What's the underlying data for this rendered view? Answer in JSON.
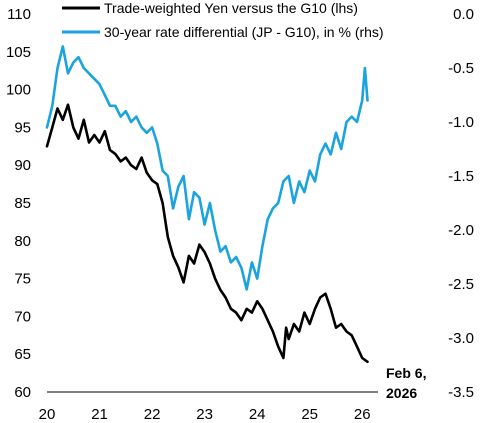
{
  "chart_data": {
    "type": "line",
    "title": "",
    "xlabel": "",
    "ylabel_left": "",
    "ylabel_right": "",
    "x_range": [
      2020,
      2026.3
    ],
    "x_ticks": [
      "20",
      "21",
      "22",
      "23",
      "24",
      "25",
      "26"
    ],
    "y_left_range": [
      60,
      110
    ],
    "y_left_ticks": [
      "60",
      "65",
      "70",
      "75",
      "80",
      "85",
      "90",
      "95",
      "100",
      "105",
      "110"
    ],
    "y_right_range": [
      -3.5,
      0.0
    ],
    "y_right_ticks": [
      "0.0",
      "-0.5",
      "-1.0",
      "-1.5",
      "-2.0",
      "-2.5",
      "-3.0",
      "-3.5"
    ],
    "grid": false,
    "legend_position": "top-left",
    "annotation": {
      "line1": "Feb 6,",
      "line2": "2026"
    },
    "series": [
      {
        "name": "Trade-weighted Yen versus the G10 (lhs)",
        "axis": "left",
        "color": "#000000",
        "x": [
          2020.0,
          2020.1,
          2020.2,
          2020.3,
          2020.4,
          2020.5,
          2020.6,
          2020.7,
          2020.8,
          2020.9,
          2021.0,
          2021.1,
          2021.2,
          2021.3,
          2021.4,
          2021.5,
          2021.6,
          2021.7,
          2021.8,
          2021.9,
          2022.0,
          2022.1,
          2022.2,
          2022.3,
          2022.4,
          2022.5,
          2022.6,
          2022.7,
          2022.8,
          2022.9,
          2023.0,
          2023.1,
          2023.2,
          2023.3,
          2023.4,
          2023.5,
          2023.6,
          2023.7,
          2023.8,
          2023.9,
          2024.0,
          2024.1,
          2024.2,
          2024.3,
          2024.4,
          2024.5,
          2024.55,
          2024.6,
          2024.7,
          2024.8,
          2024.9,
          2025.0,
          2025.1,
          2025.2,
          2025.3,
          2025.4,
          2025.5,
          2025.6,
          2025.7,
          2025.8,
          2025.9,
          2026.0,
          2026.1
        ],
        "y": [
          92.5,
          95.0,
          97.5,
          96.0,
          98.0,
          95.0,
          93.5,
          96.0,
          93.0,
          94.0,
          93.0,
          94.5,
          92.0,
          91.5,
          90.5,
          91.0,
          90.0,
          89.5,
          91.0,
          89.0,
          88.0,
          87.5,
          85.0,
          80.5,
          78.0,
          76.5,
          74.5,
          78.0,
          77.0,
          79.5,
          78.5,
          77.0,
          75.0,
          73.5,
          72.5,
          71.0,
          70.5,
          69.5,
          71.0,
          70.5,
          72.0,
          71.0,
          69.5,
          68.0,
          66.0,
          64.5,
          68.5,
          67.0,
          69.0,
          68.0,
          70.5,
          69.0,
          71.0,
          72.5,
          73.0,
          71.0,
          68.5,
          69.0,
          68.0,
          67.5,
          66.0,
          64.5,
          64.0
        ]
      },
      {
        "name": "30-year rate differential (JP - G10), in % (rhs)",
        "axis": "right",
        "color": "#1ba3dd",
        "x": [
          2020.0,
          2020.1,
          2020.2,
          2020.3,
          2020.4,
          2020.5,
          2020.6,
          2020.7,
          2020.8,
          2020.9,
          2021.0,
          2021.1,
          2021.2,
          2021.3,
          2021.4,
          2021.5,
          2021.6,
          2021.7,
          2021.8,
          2021.9,
          2022.0,
          2022.1,
          2022.2,
          2022.3,
          2022.4,
          2022.5,
          2022.6,
          2022.7,
          2022.8,
          2022.9,
          2023.0,
          2023.1,
          2023.2,
          2023.3,
          2023.4,
          2023.5,
          2023.6,
          2023.7,
          2023.8,
          2023.9,
          2024.0,
          2024.1,
          2024.2,
          2024.3,
          2024.4,
          2024.5,
          2024.6,
          2024.7,
          2024.8,
          2024.9,
          2025.0,
          2025.1,
          2025.2,
          2025.3,
          2025.4,
          2025.5,
          2025.6,
          2025.7,
          2025.8,
          2025.9,
          2026.0,
          2026.05,
          2026.1
        ],
        "y": [
          -1.05,
          -0.85,
          -0.5,
          -0.3,
          -0.55,
          -0.45,
          -0.4,
          -0.5,
          -0.55,
          -0.6,
          -0.65,
          -0.75,
          -0.85,
          -0.85,
          -0.95,
          -0.9,
          -1.0,
          -0.95,
          -1.05,
          -1.1,
          -1.05,
          -1.2,
          -1.45,
          -1.5,
          -1.8,
          -1.6,
          -1.5,
          -1.9,
          -1.65,
          -1.7,
          -1.95,
          -1.75,
          -2.0,
          -2.2,
          -2.15,
          -2.3,
          -2.25,
          -2.35,
          -2.55,
          -2.3,
          -2.45,
          -2.15,
          -1.9,
          -1.8,
          -1.75,
          -1.55,
          -1.5,
          -1.75,
          -1.55,
          -1.65,
          -1.45,
          -1.55,
          -1.3,
          -1.2,
          -1.3,
          -1.1,
          -1.25,
          -1.0,
          -0.95,
          -1.0,
          -0.8,
          -0.5,
          -0.8
        ]
      }
    ]
  }
}
